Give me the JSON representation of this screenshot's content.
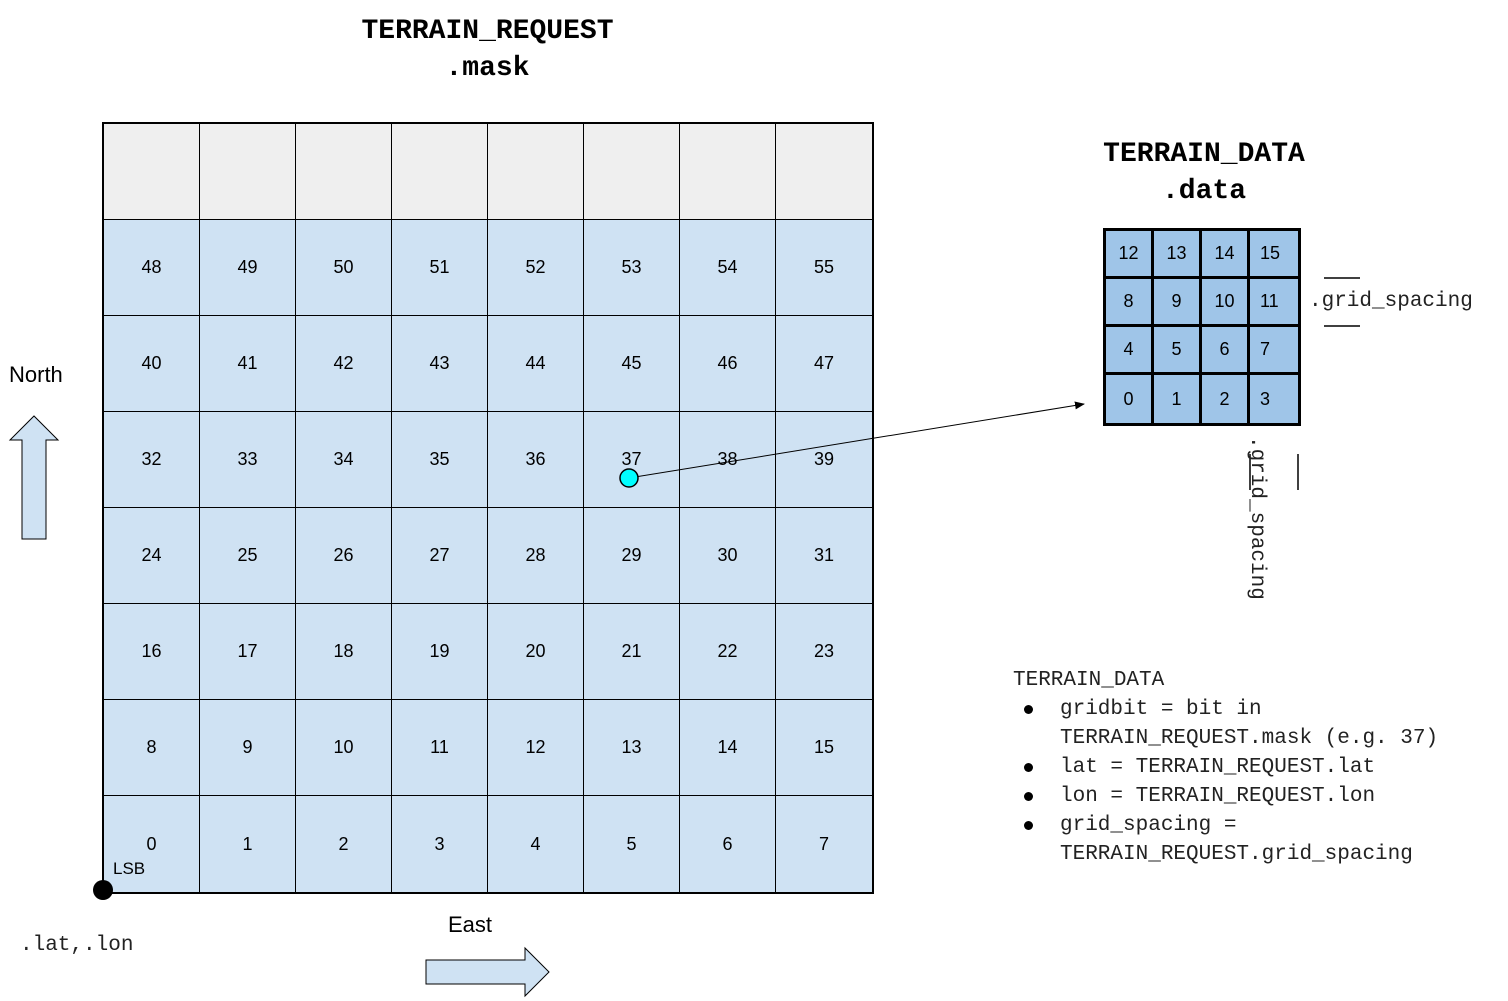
{
  "mask_title": {
    "line1": "TERRAIN_REQUEST",
    "line2": ".mask"
  },
  "data_title": {
    "line1": "TERRAIN_DATA",
    "line2": ".data"
  },
  "mask_rows": [
    [
      "",
      "",
      "",
      "",
      "",
      "",
      "",
      ""
    ],
    [
      "48",
      "49",
      "50",
      "51",
      "52",
      "53",
      "54",
      "55"
    ],
    [
      "40",
      "41",
      "42",
      "43",
      "44",
      "45",
      "46",
      "47"
    ],
    [
      "32",
      "33",
      "34",
      "35",
      "36",
      "37",
      "38",
      "39"
    ],
    [
      "24",
      "25",
      "26",
      "27",
      "28",
      "29",
      "30",
      "31"
    ],
    [
      "16",
      "17",
      "18",
      "19",
      "20",
      "21",
      "22",
      "23"
    ],
    [
      "8",
      "9",
      "10",
      "11",
      "12",
      "13",
      "14",
      "15"
    ],
    [
      "0",
      "1",
      "2",
      "3",
      "4",
      "5",
      "6",
      "7"
    ]
  ],
  "data_rows": [
    [
      "12",
      "13",
      "14",
      "15"
    ],
    [
      "8",
      "9",
      "10",
      "11"
    ],
    [
      "4",
      "5",
      "6",
      "7"
    ],
    [
      "0",
      "1",
      "2",
      "3"
    ]
  ],
  "lsb_label": "LSB",
  "north_label": "North",
  "east_label": "East",
  "origin_label": ".lat,.lon",
  "grid_spacing_h": ".grid_spacing",
  "grid_spacing_v": ".grid_spacing",
  "highlight_bit": "37",
  "notes": {
    "heading": "TERRAIN_DATA",
    "items": [
      {
        "line1": "gridbit = bit in",
        "line2": "TERRAIN_REQUEST.mask (e.g. 37)"
      },
      {
        "line1": "lat = TERRAIN_REQUEST.lat",
        "line2": ""
      },
      {
        "line1": "lon = TERRAIN_REQUEST.lon",
        "line2": ""
      },
      {
        "line1": "grid_spacing =",
        "line2": "TERRAIN_REQUEST.grid_spacing"
      }
    ]
  },
  "colors": {
    "cell_fill": "#cfe2f3",
    "empty_fill": "#efefef",
    "data_fill": "#9fc5e8",
    "marker": "#00ffff",
    "arrow_fill": "#cfe2f3"
  }
}
